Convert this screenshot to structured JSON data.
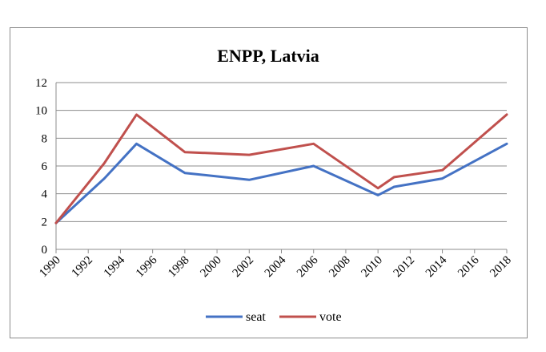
{
  "chart_data": {
    "type": "line",
    "title": "ENPP, Latvia",
    "xlabel": "",
    "ylabel": "",
    "x_ticks": [
      "1990",
      "1992",
      "1994",
      "1996",
      "1998",
      "2000",
      "2002",
      "2004",
      "2006",
      "2008",
      "2010",
      "2012",
      "2014",
      "2016",
      "2018"
    ],
    "x_range": [
      1990,
      2018
    ],
    "ylim": [
      0,
      12
    ],
    "y_ticks": [
      "0",
      "2",
      "4",
      "6",
      "8",
      "10",
      "12"
    ],
    "grid": "horizontal",
    "legend_position": "bottom",
    "series": [
      {
        "name": "seat",
        "color": "#4472c4",
        "points": [
          {
            "x": 1990,
            "y": 1.9
          },
          {
            "x": 1993,
            "y": 5.1
          },
          {
            "x": 1995,
            "y": 7.6
          },
          {
            "x": 1998,
            "y": 5.5
          },
          {
            "x": 2002,
            "y": 5.0
          },
          {
            "x": 2006,
            "y": 6.0
          },
          {
            "x": 2010,
            "y": 3.9
          },
          {
            "x": 2011,
            "y": 4.5
          },
          {
            "x": 2014,
            "y": 5.1
          },
          {
            "x": 2018,
            "y": 7.6
          }
        ]
      },
      {
        "name": "vote",
        "color": "#c0504d",
        "points": [
          {
            "x": 1990,
            "y": 1.9
          },
          {
            "x": 1993,
            "y": 6.2
          },
          {
            "x": 1995,
            "y": 9.7
          },
          {
            "x": 1998,
            "y": 7.0
          },
          {
            "x": 2002,
            "y": 6.8
          },
          {
            "x": 2006,
            "y": 7.6
          },
          {
            "x": 2010,
            "y": 4.4
          },
          {
            "x": 2011,
            "y": 5.2
          },
          {
            "x": 2014,
            "y": 5.7
          },
          {
            "x": 2018,
            "y": 9.7
          }
        ]
      }
    ]
  }
}
